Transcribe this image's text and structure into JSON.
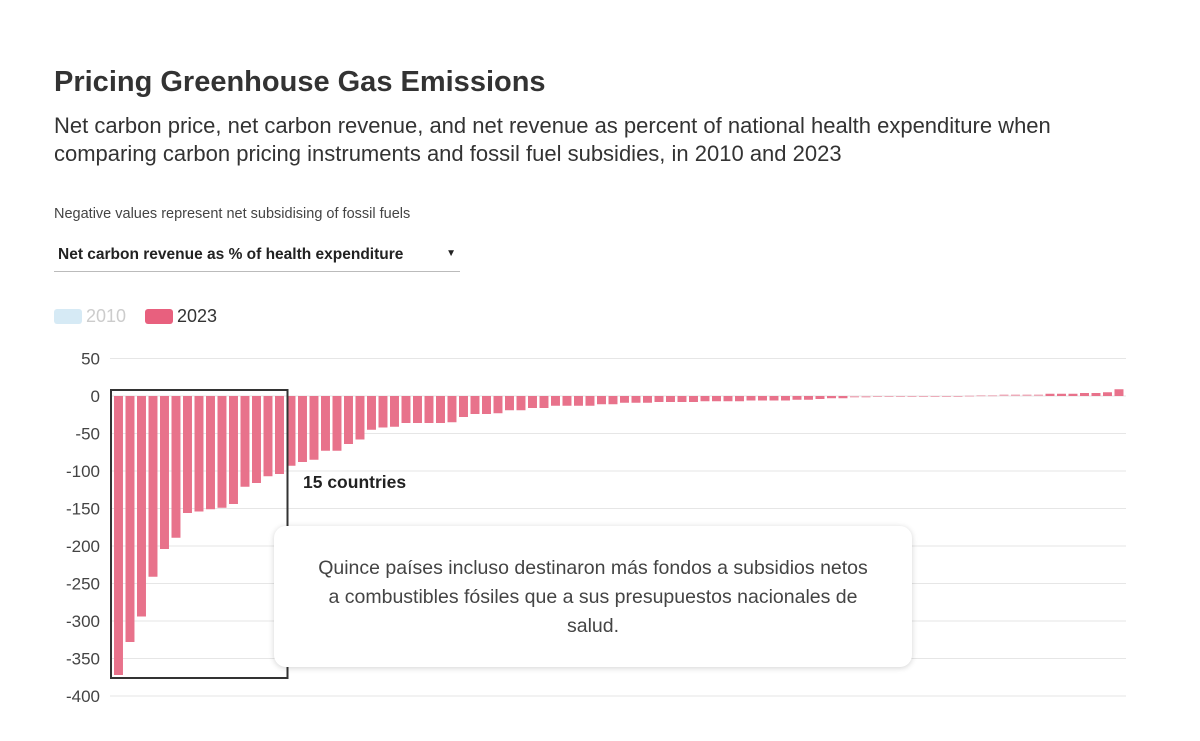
{
  "header": {
    "title": "Pricing Greenhouse Gas Emissions",
    "subtitle": "Net carbon price, net carbon revenue, and net revenue as percent of national health expenditure when comparing carbon pricing instruments and fossil fuel subsidies, in 2010 and 2023",
    "note": "Negative values represent net subsidising of fossil fuels"
  },
  "dropdown": {
    "selected": "Net carbon revenue as % of health expenditure"
  },
  "colors": {
    "series_2023": "#e8728b",
    "series_2010": "#d6eaf5",
    "grid": "#e6e6e6",
    "box": "#333333"
  },
  "annotation": {
    "box_label": "15 countries",
    "tooltip": "Quince países incluso destinaron más fondos a subsidios netos a combustibles fósiles que a sus presupuestos nacionales de salud."
  },
  "chart_data": {
    "type": "bar",
    "title": "Pricing Greenhouse Gas Emissions",
    "ylabel": "Net carbon revenue as % of health expenditure",
    "ylim": [
      -400,
      50
    ],
    "yticks": [
      50,
      0,
      -50,
      -100,
      -150,
      -200,
      -250,
      -300,
      -350,
      -400
    ],
    "grid": true,
    "legend": [
      {
        "name": "2010",
        "active": false
      },
      {
        "name": "2023",
        "active": true
      }
    ],
    "legend_position": "top-left",
    "highlight_count": 15,
    "series": [
      {
        "name": "2023",
        "values": [
          -372,
          -328,
          -294,
          -241,
          -204,
          -189,
          -156,
          -154,
          -151,
          -149,
          -144,
          -121,
          -116,
          -107,
          -104,
          -93,
          -88,
          -85,
          -73,
          -73,
          -64,
          -58,
          -45,
          -42,
          -41,
          -36,
          -36,
          -36,
          -36,
          -35,
          -28,
          -24,
          -24,
          -23,
          -19,
          -19,
          -16,
          -16,
          -13,
          -13,
          -13,
          -13,
          -11,
          -11,
          -9,
          -9,
          -9,
          -8,
          -8,
          -8,
          -8,
          -7,
          -7,
          -7,
          -7,
          -6,
          -6,
          -6,
          -6,
          -5,
          -5,
          -4,
          -3,
          -3,
          -2,
          -2,
          -1,
          -1,
          -0.5,
          -0.5,
          -0.3,
          0,
          0,
          0,
          0.5,
          1,
          1,
          2,
          2,
          2,
          2,
          3,
          3,
          3,
          4,
          4,
          5,
          9
        ]
      }
    ]
  }
}
